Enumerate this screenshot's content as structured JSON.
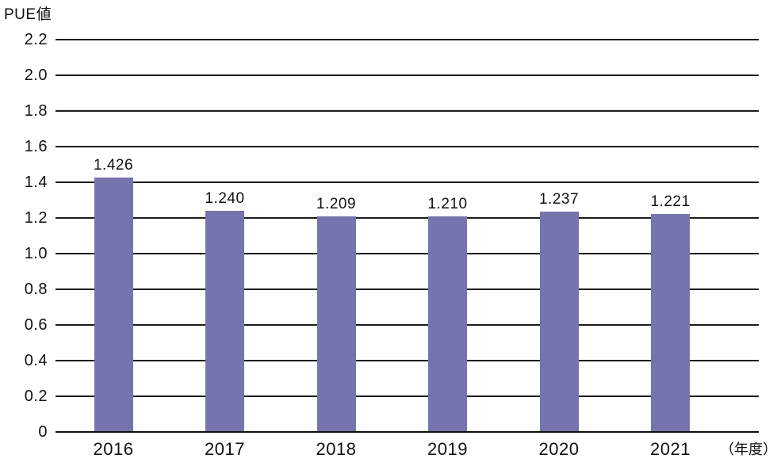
{
  "chart_data": {
    "type": "bar",
    "title": "PUE値",
    "xlabel": "（年度）",
    "categories": [
      "2016",
      "2017",
      "2018",
      "2019",
      "2020",
      "2021"
    ],
    "values": [
      1.426,
      1.24,
      1.209,
      1.21,
      1.237,
      1.221
    ],
    "value_labels": [
      "1.426",
      "1.240",
      "1.209",
      "1.210",
      "1.237",
      "1.221"
    ],
    "ylim": [
      0,
      2.2
    ],
    "ytick_step": 0.2,
    "yticks_top_to_bottom": [
      "2.2",
      "2.0",
      "1.8",
      "1.6",
      "1.4",
      "1.2",
      "1.0",
      "0.8",
      "0.6",
      "0.4",
      "0.2",
      "0"
    ],
    "grid": true,
    "legend": "none",
    "bar_color": "#7674AC",
    "gridline_color": "#1c1c1c",
    "axis_color": "#0d0d0d",
    "text_color": "#111111"
  }
}
